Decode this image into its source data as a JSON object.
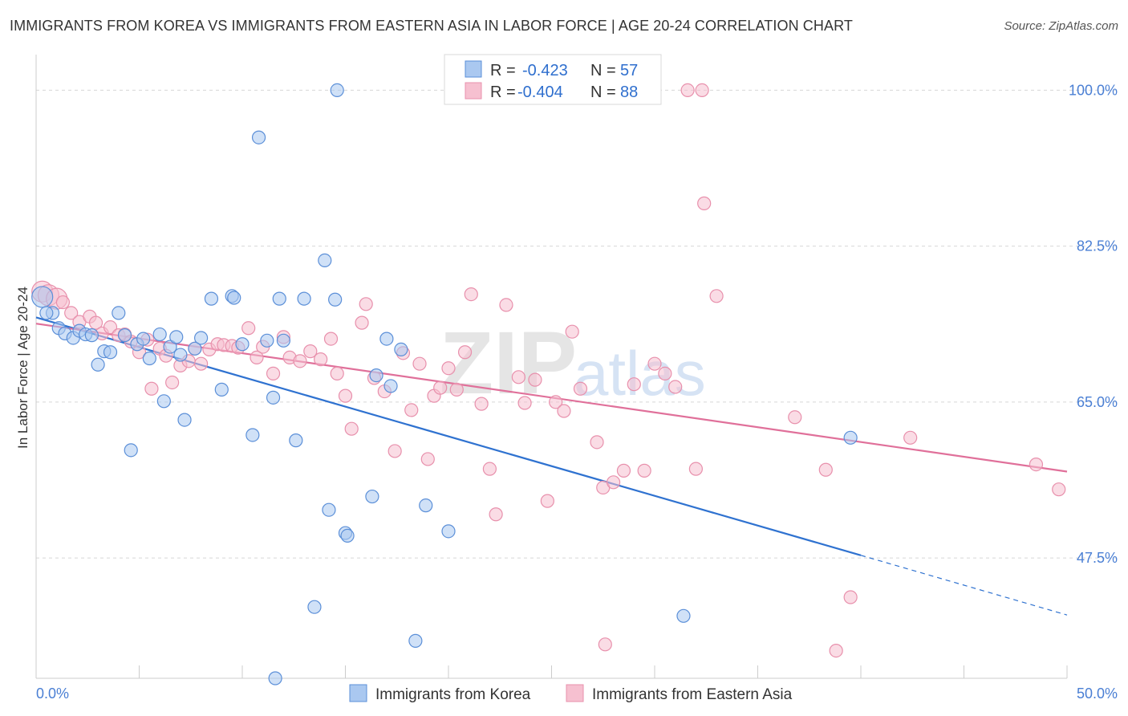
{
  "title": "IMMIGRANTS FROM KOREA VS IMMIGRANTS FROM EASTERN ASIA IN LABOR FORCE | AGE 20-24 CORRELATION CHART",
  "source": "Source: ZipAtlas.com",
  "watermark": {
    "zip": "ZIP",
    "atlas": "atlas"
  },
  "colors": {
    "korea_fill": "#aac8f0",
    "korea_stroke": "#5b8fd8",
    "korea_line": "#2f72d0",
    "eastasia_fill": "#f6c0d0",
    "eastasia_stroke": "#e890ac",
    "eastasia_line": "#e0709a",
    "grid": "#d8d8d8",
    "tick_text": "#4a7fd4"
  },
  "legend": {
    "rows": [
      {
        "r_label": "R =",
        "r_value": "-0.423",
        "n_label": "N =",
        "n_value": "57"
      },
      {
        "r_label": "R =",
        "r_value": "-0.404",
        "n_label": "N =",
        "n_value": "88"
      }
    ]
  },
  "chart_data": {
    "type": "scatter",
    "title": "IMMIGRANTS FROM KOREA VS IMMIGRANTS FROM EASTERN ASIA IN LABOR FORCE | AGE 20-24 CORRELATION CHART",
    "xlabel": "",
    "ylabel": "In Labor Force | Age 20-24",
    "xlim": [
      0,
      50
    ],
    "ylim": [
      34,
      104
    ],
    "x_tick_labels": [
      "0.0%",
      "50.0%"
    ],
    "y_ticks": [
      47.5,
      65.0,
      82.5,
      100.0
    ],
    "y_tick_labels": [
      "47.5%",
      "65.0%",
      "82.5%",
      "100.0%"
    ],
    "grid": true,
    "legend_position": "bottom",
    "series": [
      {
        "name": "Immigrants from Korea",
        "trend": {
          "x0": 0,
          "y0": 74.5,
          "x1": 40,
          "y1": 47.8,
          "dashed_to_x": 50,
          "dashed_to_y": 41.1
        },
        "points": [
          [
            0.3,
            76.8
          ],
          [
            0.8,
            75.0
          ],
          [
            0.5,
            75.0
          ],
          [
            1.1,
            73.3
          ],
          [
            1.4,
            72.7
          ],
          [
            1.8,
            72.2
          ],
          [
            2.1,
            73.0
          ],
          [
            2.4,
            72.6
          ],
          [
            2.7,
            72.5
          ],
          [
            3.0,
            69.2
          ],
          [
            3.3,
            70.7
          ],
          [
            3.6,
            70.6
          ],
          [
            4.0,
            75.0
          ],
          [
            4.3,
            72.5
          ],
          [
            4.6,
            59.6
          ],
          [
            4.9,
            71.5
          ],
          [
            5.2,
            72.1
          ],
          [
            5.5,
            69.9
          ],
          [
            6.0,
            72.6
          ],
          [
            6.2,
            65.1
          ],
          [
            6.5,
            71.2
          ],
          [
            6.8,
            72.3
          ],
          [
            7.0,
            70.3
          ],
          [
            7.2,
            63.0
          ],
          [
            7.7,
            71.0
          ],
          [
            8.0,
            72.2
          ],
          [
            8.5,
            76.6
          ],
          [
            9.0,
            66.4
          ],
          [
            9.5,
            76.9
          ],
          [
            9.6,
            76.7
          ],
          [
            10.0,
            71.5
          ],
          [
            10.5,
            61.3
          ],
          [
            10.8,
            94.7
          ],
          [
            11.2,
            71.9
          ],
          [
            11.5,
            65.5
          ],
          [
            11.8,
            76.6
          ],
          [
            12.0,
            71.9
          ],
          [
            12.6,
            60.7
          ],
          [
            13.0,
            76.6
          ],
          [
            13.5,
            42.0
          ],
          [
            14.0,
            80.9
          ],
          [
            14.5,
            76.5
          ],
          [
            14.2,
            52.9
          ],
          [
            15.0,
            50.3
          ],
          [
            15.1,
            50.0
          ],
          [
            16.5,
            68.0
          ],
          [
            16.3,
            54.4
          ],
          [
            17.0,
            72.1
          ],
          [
            17.2,
            66.8
          ],
          [
            17.7,
            70.9
          ],
          [
            18.9,
            53.4
          ],
          [
            18.4,
            38.2
          ],
          [
            20.0,
            50.5
          ],
          [
            31.4,
            41.0
          ],
          [
            39.5,
            61.0
          ],
          [
            14.6,
            100.0
          ],
          [
            11.6,
            34.0
          ]
        ]
      },
      {
        "name": "Immigrants from Eastern Asia",
        "trend": {
          "x0": 0,
          "y0": 73.8,
          "x1": 50,
          "y1": 57.2
        },
        "points": [
          [
            0.3,
            77.4
          ],
          [
            0.6,
            77.0
          ],
          [
            1.0,
            76.6
          ],
          [
            1.3,
            76.2
          ],
          [
            1.7,
            75.0
          ],
          [
            2.1,
            74.0
          ],
          [
            2.6,
            74.6
          ],
          [
            2.9,
            73.9
          ],
          [
            3.2,
            72.7
          ],
          [
            3.6,
            73.4
          ],
          [
            4.0,
            72.5
          ],
          [
            4.3,
            72.6
          ],
          [
            4.6,
            71.8
          ],
          [
            5.0,
            70.6
          ],
          [
            5.4,
            72.0
          ],
          [
            5.6,
            66.5
          ],
          [
            6.0,
            71.0
          ],
          [
            6.3,
            70.2
          ],
          [
            6.6,
            67.2
          ],
          [
            7.0,
            69.1
          ],
          [
            7.4,
            69.6
          ],
          [
            7.7,
            71.0
          ],
          [
            8.0,
            69.3
          ],
          [
            8.4,
            70.9
          ],
          [
            8.8,
            71.5
          ],
          [
            9.1,
            71.4
          ],
          [
            9.5,
            71.3
          ],
          [
            9.8,
            71.1
          ],
          [
            10.3,
            73.3
          ],
          [
            10.7,
            70.0
          ],
          [
            11.0,
            71.2
          ],
          [
            11.5,
            68.2
          ],
          [
            12.0,
            72.3
          ],
          [
            12.3,
            70.0
          ],
          [
            12.8,
            69.6
          ],
          [
            13.3,
            70.7
          ],
          [
            13.8,
            69.8
          ],
          [
            14.3,
            72.1
          ],
          [
            14.6,
            68.2
          ],
          [
            15.0,
            65.7
          ],
          [
            15.3,
            62.0
          ],
          [
            15.8,
            73.9
          ],
          [
            16.0,
            76.0
          ],
          [
            16.4,
            67.7
          ],
          [
            16.9,
            66.2
          ],
          [
            17.4,
            59.5
          ],
          [
            17.8,
            70.5
          ],
          [
            18.2,
            64.1
          ],
          [
            18.6,
            69.3
          ],
          [
            19.0,
            58.6
          ],
          [
            19.3,
            65.7
          ],
          [
            19.6,
            66.6
          ],
          [
            20.0,
            68.8
          ],
          [
            20.4,
            66.4
          ],
          [
            20.8,
            70.6
          ],
          [
            21.1,
            77.1
          ],
          [
            21.6,
            64.8
          ],
          [
            22.0,
            57.5
          ],
          [
            22.3,
            52.4
          ],
          [
            22.8,
            75.9
          ],
          [
            23.4,
            67.8
          ],
          [
            23.7,
            64.9
          ],
          [
            24.2,
            67.5
          ],
          [
            24.8,
            53.9
          ],
          [
            25.2,
            65.0
          ],
          [
            25.6,
            64.0
          ],
          [
            26.0,
            72.9
          ],
          [
            26.4,
            66.5
          ],
          [
            27.2,
            60.5
          ],
          [
            27.6,
            37.8
          ],
          [
            27.5,
            55.4
          ],
          [
            28.0,
            56.0
          ],
          [
            28.5,
            57.3
          ],
          [
            29.0,
            67.0
          ],
          [
            29.5,
            57.3
          ],
          [
            30.0,
            69.3
          ],
          [
            30.5,
            68.2
          ],
          [
            31.0,
            66.7
          ],
          [
            32.0,
            57.5
          ],
          [
            32.4,
            87.3
          ],
          [
            33.0,
            76.9
          ],
          [
            36.8,
            63.3
          ],
          [
            38.3,
            57.4
          ],
          [
            38.8,
            37.1
          ],
          [
            39.5,
            43.1
          ],
          [
            42.4,
            61.0
          ],
          [
            48.5,
            58.0
          ],
          [
            49.6,
            55.2
          ],
          [
            31.6,
            100.0
          ],
          [
            32.3,
            100.0
          ]
        ]
      }
    ]
  },
  "bottom_legend": [
    "Immigrants from Korea",
    "Immigrants from Eastern Asia"
  ]
}
